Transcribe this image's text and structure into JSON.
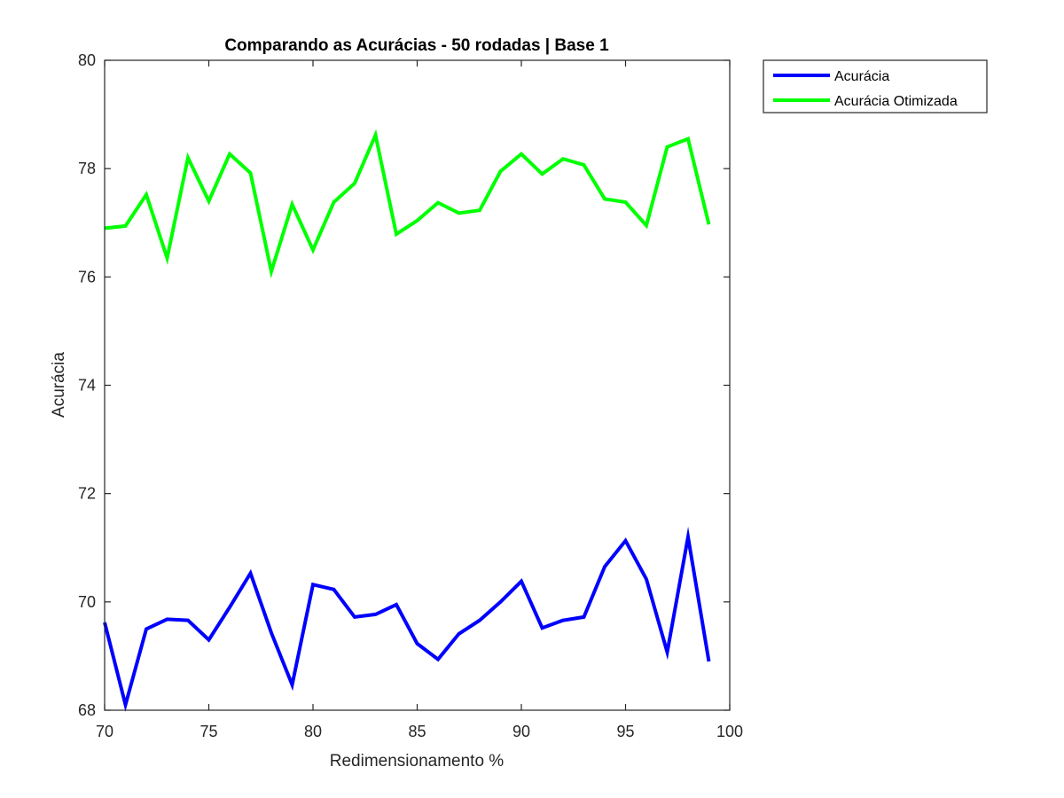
{
  "chart_data": {
    "type": "line",
    "title": "Comparando as Acurácias - 50 rodadas | Base 1",
    "xlabel": "Redimensionamento %",
    "ylabel": "Acurácia",
    "xlim": [
      70,
      100
    ],
    "ylim": [
      68,
      80
    ],
    "xticks": [
      70,
      75,
      80,
      85,
      90,
      95,
      100
    ],
    "yticks": [
      68,
      70,
      72,
      74,
      76,
      78,
      80
    ],
    "grid": false,
    "legend_position": "outside top-right",
    "x": [
      70,
      71,
      72,
      73,
      74,
      75,
      76,
      77,
      78,
      79,
      80,
      81,
      82,
      83,
      84,
      85,
      86,
      87,
      88,
      89,
      90,
      91,
      92,
      93,
      94,
      95,
      96,
      97,
      98,
      99
    ],
    "series": [
      {
        "name": "Acurácia",
        "color": "#0000FF",
        "values": [
          69.62,
          68.1,
          69.5,
          69.68,
          69.66,
          69.3,
          69.9,
          70.53,
          69.43,
          68.47,
          70.32,
          70.23,
          69.72,
          69.77,
          69.95,
          69.23,
          68.94,
          69.41,
          69.66,
          70.0,
          70.38,
          69.52,
          69.66,
          69.72,
          70.65,
          71.13,
          70.42,
          69.07,
          71.2,
          68.9
        ]
      },
      {
        "name": "Acurácia Otimizada",
        "color": "#00FF00",
        "values": [
          76.9,
          76.94,
          77.52,
          76.35,
          78.2,
          77.4,
          78.27,
          77.92,
          76.1,
          77.34,
          76.5,
          77.38,
          77.73,
          78.62,
          76.79,
          77.04,
          77.37,
          77.18,
          77.23,
          77.95,
          78.27,
          77.9,
          78.18,
          78.07,
          77.44,
          77.38,
          76.95,
          78.4,
          78.55,
          76.97
        ]
      }
    ]
  }
}
